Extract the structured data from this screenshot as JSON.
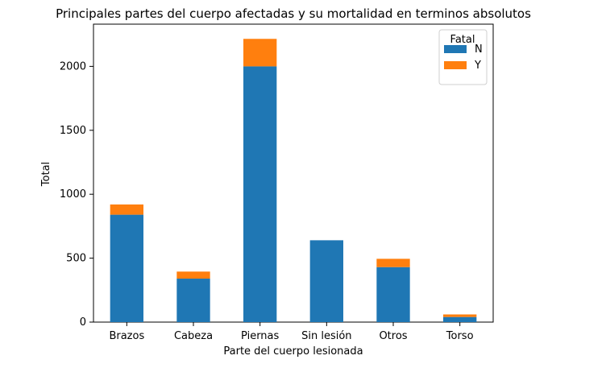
{
  "chart_data": {
    "type": "bar",
    "stacked": true,
    "title": "Principales partes del cuerpo afectadas y su mortalidad en terminos absolutos",
    "xlabel": "Parte del cuerpo lesionada",
    "ylabel": "Total",
    "categories": [
      "Brazos",
      "Cabeza",
      "Piernas",
      "Sin lesión",
      "Otros",
      "Torso"
    ],
    "series": [
      {
        "name": "N",
        "color": "#1f77b4",
        "values": [
          840,
          340,
          2000,
          640,
          430,
          40
        ]
      },
      {
        "name": "Y",
        "color": "#ff7f0e",
        "values": [
          80,
          55,
          215,
          0,
          65,
          20
        ]
      }
    ],
    "ylim": [
      0,
      2330
    ],
    "yticks": [
      0,
      500,
      1000,
      1500,
      2000
    ],
    "legend": {
      "title": "Fatal",
      "placement": "top-right"
    },
    "grid": false
  }
}
